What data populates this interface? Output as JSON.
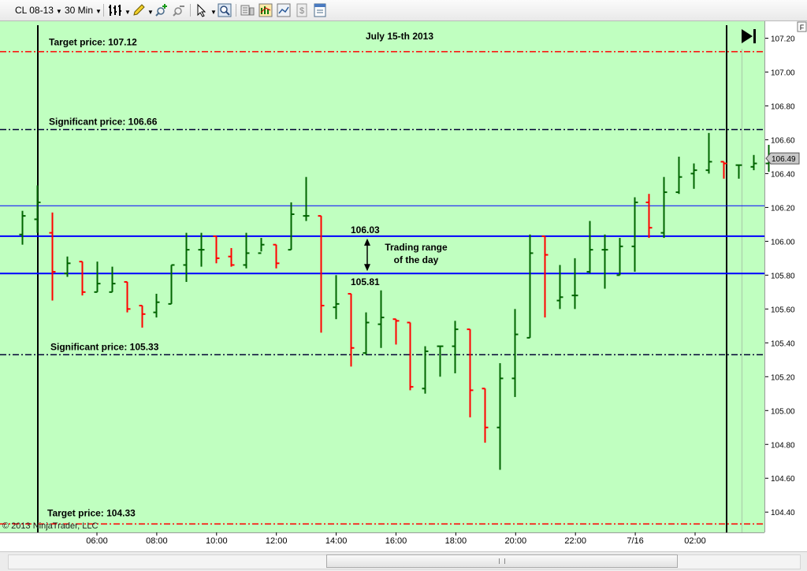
{
  "toolbar": {
    "instrument": "CL 08-13",
    "interval": "30 Min",
    "icons": [
      "bar-type-icon",
      "pencil-draw-icon",
      "crosshair-add-icon",
      "crosshair-remove-icon",
      "pointer-icon",
      "zoom-icon",
      "data-box-icon",
      "indicators-icon",
      "strategies-icon",
      "chart-properties-icon",
      "properties-icon"
    ]
  },
  "chart_data": {
    "type": "ohlc",
    "title": "July 15-th 2013",
    "copyright": "© 2013 NinjaTrader, LLC",
    "x_tick_labels": [
      "06:00",
      "08:00",
      "10:00",
      "12:00",
      "14:00",
      "16:00",
      "18:00",
      "20:00",
      "22:00",
      "7/16",
      "02:00"
    ],
    "ylim": [
      104.28,
      107.3
    ],
    "y_tick_labels": [
      "107.20",
      "107.00",
      "106.80",
      "106.60",
      "106.40",
      "106.20",
      "106.00",
      "105.80",
      "105.60",
      "105.40",
      "105.20",
      "105.00",
      "104.80",
      "104.60",
      "104.40"
    ],
    "y_ticks": [
      107.2,
      107.0,
      106.8,
      106.6,
      106.4,
      106.2,
      106.0,
      105.8,
      105.6,
      105.4,
      105.2,
      105.0,
      104.8,
      104.6,
      104.4
    ],
    "last_price": "106.49",
    "last_price_value": 106.49,
    "panel_label": "F",
    "colors": {
      "background": "#c0ffc0",
      "up": "#006400",
      "down": "#ff0000",
      "target": "#ff0000",
      "significant": "#000033",
      "range": "#0000ff",
      "thin": "#0000ff",
      "session": "#000000"
    },
    "bars": [
      {
        "o": 106.04,
        "h": 106.18,
        "l": 105.98,
        "c": 106.15
      },
      {
        "o": 106.13,
        "h": 106.33,
        "l": 106.05,
        "c": 106.23
      },
      {
        "o": 106.05,
        "h": 106.17,
        "l": 105.65,
        "c": 105.82
      },
      {
        "o": 105.81,
        "h": 105.91,
        "l": 105.79,
        "c": 105.87
      },
      {
        "o": 105.88,
        "h": 105.88,
        "l": 105.68,
        "c": 105.7
      },
      {
        "o": 105.7,
        "h": 105.88,
        "l": 105.7,
        "c": 105.75
      },
      {
        "o": 105.7,
        "h": 105.85,
        "l": 105.7,
        "c": 105.75
      },
      {
        "o": 105.76,
        "h": 105.76,
        "l": 105.58,
        "c": 105.6
      },
      {
        "o": 105.62,
        "h": 105.62,
        "l": 105.49,
        "c": 105.57
      },
      {
        "o": 105.58,
        "h": 105.69,
        "l": 105.55,
        "c": 105.64
      },
      {
        "o": 105.63,
        "h": 105.86,
        "l": 105.63,
        "c": 105.86
      },
      {
        "o": 105.86,
        "h": 106.05,
        "l": 105.76,
        "c": 105.95
      },
      {
        "o": 105.95,
        "h": 106.05,
        "l": 105.85,
        "c": 105.95
      },
      {
        "o": 106.03,
        "h": 106.03,
        "l": 105.87,
        "c": 105.9
      },
      {
        "o": 105.91,
        "h": 105.96,
        "l": 105.85,
        "c": 105.86
      },
      {
        "o": 105.86,
        "h": 106.05,
        "l": 105.84,
        "c": 105.93
      },
      {
        "o": 105.93,
        "h": 106.02,
        "l": 105.94,
        "c": 105.98
      },
      {
        "o": 105.98,
        "h": 105.98,
        "l": 105.84,
        "c": 105.87
      },
      {
        "o": 105.95,
        "h": 106.23,
        "l": 105.95,
        "c": 106.16
      },
      {
        "o": 106.15,
        "h": 106.38,
        "l": 106.12,
        "c": 106.15
      },
      {
        "o": 106.15,
        "h": 106.15,
        "l": 105.46,
        "c": 105.62
      },
      {
        "o": 105.61,
        "h": 105.8,
        "l": 105.54,
        "c": 105.63
      },
      {
        "o": 105.69,
        "h": 105.69,
        "l": 105.26,
        "c": 105.37
      },
      {
        "o": 105.34,
        "h": 105.58,
        "l": 105.33,
        "c": 105.52
      },
      {
        "o": 105.51,
        "h": 105.71,
        "l": 105.37,
        "c": 105.55
      },
      {
        "o": 105.54,
        "h": 105.54,
        "l": 105.39,
        "c": 105.53
      },
      {
        "o": 105.52,
        "h": 105.52,
        "l": 105.12,
        "c": 105.14
      },
      {
        "o": 105.13,
        "h": 105.38,
        "l": 105.1,
        "c": 105.35
      },
      {
        "o": 105.38,
        "h": 105.38,
        "l": 105.2,
        "c": 105.38
      },
      {
        "o": 105.38,
        "h": 105.53,
        "l": 105.22,
        "c": 105.48
      },
      {
        "o": 105.48,
        "h": 105.48,
        "l": 104.96,
        "c": 105.12
      },
      {
        "o": 105.13,
        "h": 105.13,
        "l": 104.81,
        "c": 104.9
      },
      {
        "o": 104.9,
        "h": 105.28,
        "l": 104.65,
        "c": 105.19
      },
      {
        "o": 105.19,
        "h": 105.6,
        "l": 105.08,
        "c": 105.45
      },
      {
        "o": 105.43,
        "h": 106.04,
        "l": 105.43,
        "c": 105.93
      },
      {
        "o": 106.03,
        "h": 106.03,
        "l": 105.55,
        "c": 105.92
      },
      {
        "o": 105.65,
        "h": 105.86,
        "l": 105.6,
        "c": 105.67
      },
      {
        "o": 105.68,
        "h": 105.9,
        "l": 105.6,
        "c": 105.68
      },
      {
        "o": 105.82,
        "h": 106.12,
        "l": 105.81,
        "c": 105.95
      },
      {
        "o": 105.95,
        "h": 106.04,
        "l": 105.72,
        "c": 105.95
      },
      {
        "o": 105.8,
        "h": 106.02,
        "l": 105.8,
        "c": 105.97
      },
      {
        "o": 105.97,
        "h": 106.26,
        "l": 105.82,
        "c": 106.23
      },
      {
        "o": 106.23,
        "h": 106.28,
        "l": 106.02,
        "c": 106.08
      },
      {
        "o": 106.05,
        "h": 106.38,
        "l": 106.02,
        "c": 106.29
      },
      {
        "o": 106.29,
        "h": 106.5,
        "l": 106.28,
        "c": 106.38
      },
      {
        "o": 106.4,
        "h": 106.46,
        "l": 106.31,
        "c": 106.42
      },
      {
        "o": 106.42,
        "h": 106.64,
        "l": 106.4,
        "c": 106.47
      },
      {
        "o": 106.47,
        "h": 106.47,
        "l": 106.37,
        "c": 106.46
      },
      {
        "o": 106.45,
        "h": 106.45,
        "l": 106.37,
        "c": 106.45
      },
      {
        "o": 106.44,
        "h": 106.51,
        "l": 106.42,
        "c": 106.46
      },
      {
        "o": 106.46,
        "h": 106.57,
        "l": 106.41,
        "c": 106.49
      }
    ],
    "lines": [
      {
        "name": "target-upper",
        "value": 107.12,
        "label": "Target price: 107.12",
        "style": "target"
      },
      {
        "name": "significant-upper",
        "value": 106.66,
        "label": "Significant price: 106.66",
        "style": "significant"
      },
      {
        "name": "thin-upper",
        "value": 106.21,
        "label": "",
        "style": "thin"
      },
      {
        "name": "range-high",
        "value": 106.03,
        "label": "106.03",
        "style": "range"
      },
      {
        "name": "range-low",
        "value": 105.81,
        "label": "105.81",
        "style": "range"
      },
      {
        "name": "significant-lower",
        "value": 105.33,
        "label": "Significant price: 105.33",
        "style": "significant"
      },
      {
        "name": "target-lower",
        "value": 104.33,
        "label": "Target price: 104.33",
        "style": "target"
      }
    ],
    "range_annotation": "Trading range\nof the day"
  }
}
